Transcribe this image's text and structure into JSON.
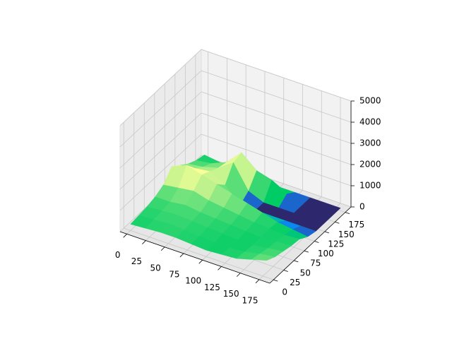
{
  "chart_data": {
    "type": "surface",
    "x": [
      0,
      20,
      40,
      60,
      80,
      100,
      120,
      140,
      160,
      180
    ],
    "y": [
      0,
      20,
      40,
      60,
      80,
      100,
      120,
      140,
      160,
      180
    ],
    "z": [
      [
        300,
        350,
        400,
        400,
        350,
        300,
        350,
        400,
        600,
        800
      ],
      [
        350,
        400,
        450,
        400,
        350,
        300,
        300,
        350,
        500,
        600
      ],
      [
        400,
        450,
        500,
        450,
        400,
        350,
        300,
        300,
        400,
        500
      ],
      [
        500,
        500,
        600,
        500,
        450,
        400,
        350,
        300,
        350,
        400
      ],
      [
        700,
        800,
        900,
        700,
        600,
        500,
        400,
        350,
        300,
        350
      ],
      [
        1200,
        1500,
        1300,
        1100,
        900,
        700,
        500,
        300,
        200,
        100
      ],
      [
        900,
        1000,
        1100,
        700,
        0,
        0,
        0,
        0,
        0,
        0
      ],
      [
        600,
        700,
        900,
        1400,
        300,
        0,
        0,
        0,
        0,
        0
      ],
      [
        400,
        500,
        800,
        1500,
        900,
        700,
        300,
        0,
        0,
        0
      ],
      [
        300,
        200,
        0,
        0,
        0,
        0,
        0,
        0,
        0,
        0
      ]
    ],
    "colormap": "terrain",
    "xlim": [
      -9,
      189
    ],
    "ylim": [
      -9,
      189
    ],
    "zlim": [
      0,
      5000
    ],
    "xticks": [
      0,
      25,
      50,
      75,
      100,
      125,
      150,
      175
    ],
    "yticks": [
      0,
      25,
      50,
      75,
      100,
      125,
      150,
      175
    ],
    "zticks": [
      0,
      1000,
      2000,
      3000,
      4000,
      5000
    ],
    "grid": true
  }
}
